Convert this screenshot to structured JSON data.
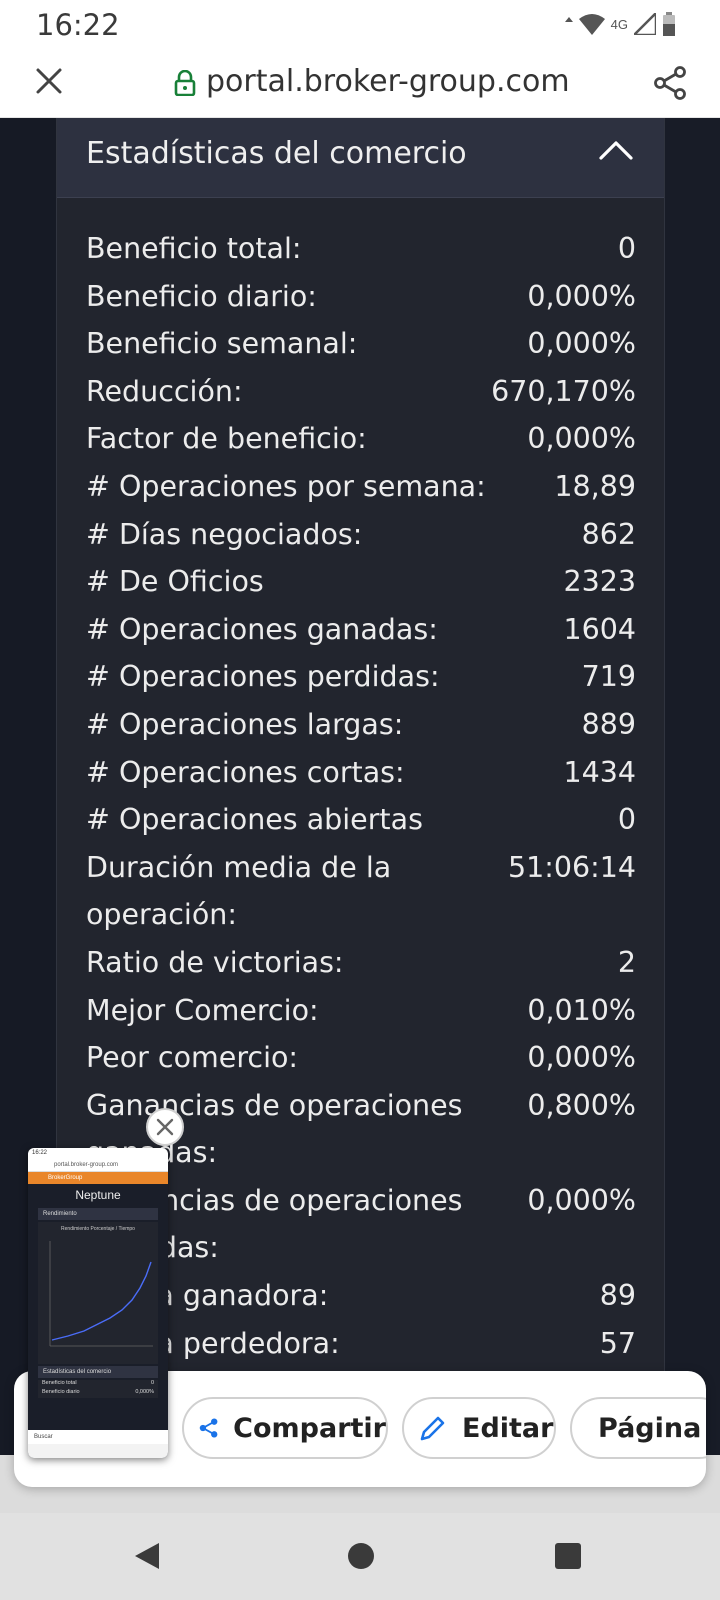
{
  "status_bar": {
    "time": "16:22",
    "network": "4G",
    "icons": [
      "data-arrows-icon",
      "wifi-icon",
      "signal-icon",
      "battery-icon"
    ]
  },
  "browser": {
    "url": "portal.broker-group.com",
    "icons": [
      "close-icon",
      "lock-icon",
      "share-icon"
    ]
  },
  "card": {
    "title": "Estadísticas del comercio",
    "stats": [
      {
        "label": "Beneficio total:",
        "value": "0"
      },
      {
        "label": "Beneficio diario:",
        "value": "0,000%"
      },
      {
        "label": "Beneficio semanal:",
        "value": "0,000%"
      },
      {
        "label": "Reducción:",
        "value": "670,170%"
      },
      {
        "label": "Factor de beneficio:",
        "value": "0,000%"
      },
      {
        "label": "# Operaciones por semana:",
        "value": "18,89"
      },
      {
        "label": "# Días negociados:",
        "value": "862"
      },
      {
        "label": "# De Oficios",
        "value": "2323"
      },
      {
        "label": "# Operaciones ganadas:",
        "value": "1604"
      },
      {
        "label": "# Operaciones perdidas:",
        "value": "719"
      },
      {
        "label": "# Operaciones largas:",
        "value": "889"
      },
      {
        "label": "# Operaciones cortas:",
        "value": "1434"
      },
      {
        "label": "# Operaciones abiertas",
        "value": "0"
      },
      {
        "label": "Duración media de la operación:",
        "value": "51:06:14"
      },
      {
        "label": "Ratio de victorias:",
        "value": "2"
      },
      {
        "label": "Mejor Comercio:",
        "value": "0,010%"
      },
      {
        "label": "Peor comercio:",
        "value": "0,000%"
      },
      {
        "label": "Ganancias de operaciones ganadas:",
        "value": "0,800%"
      },
      {
        "label": "Ganancias de operaciones perdidas:",
        "value": "0,000%"
      },
      {
        "label": "Racha ganadora:",
        "value": "89"
      },
      {
        "label": "Racha perdedora:",
        "value": "57"
      }
    ]
  },
  "share_sheet": {
    "actions": [
      {
        "label": "Compartir",
        "icon": "share-icon"
      },
      {
        "label": "Editar",
        "icon": "pencil-icon"
      },
      {
        "label": "Página",
        "icon": ""
      }
    ]
  },
  "thumbnail": {
    "time": "16:22",
    "url": "portal.broker-group.com",
    "brand": "BrokerGroup",
    "title": "Neptune",
    "section1": "Rendimiento",
    "chart_title": "Rendimiento Porcentaje / Tiempo",
    "section2": "Estadísticas del comercio",
    "stat_rows": [
      {
        "label": "Beneficio total",
        "value": "0"
      },
      {
        "label": "Beneficio diario",
        "value": "0,000%"
      }
    ],
    "search": "Buscar"
  },
  "colors": {
    "page_bg": "#181c27",
    "card_bg": "#22252e",
    "card_header_bg": "#2d3140",
    "accent_orange": "#e9862a",
    "icon_blue": "#1a73e8",
    "lock_green": "#188038"
  }
}
